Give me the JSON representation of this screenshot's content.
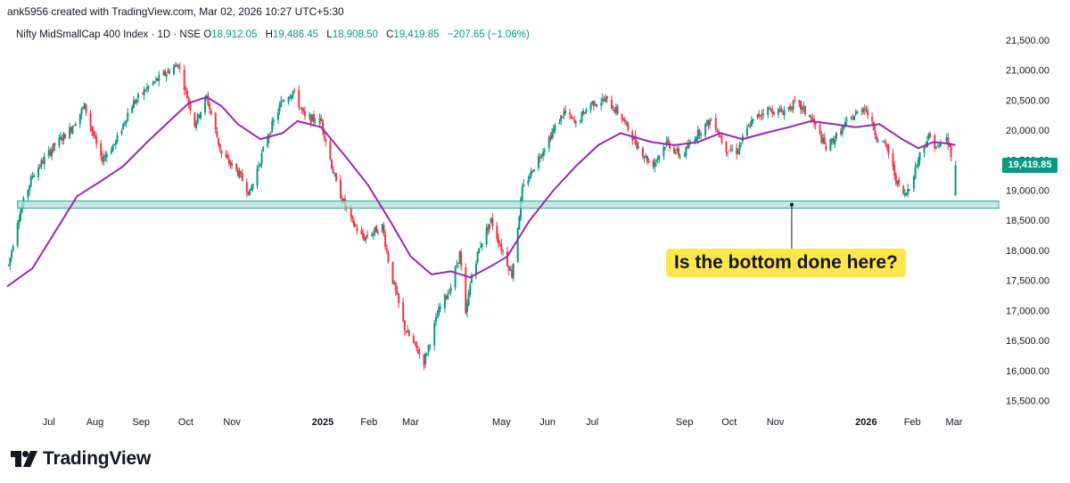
{
  "header": {
    "credit": "ank5956 created with TradingView.com, Mar 02, 2026 10:27 UTC+5:30"
  },
  "legend": {
    "symbol": "Nifty MidSmallCap 400 Index · 1D · NSE",
    "open_label": "O",
    "open": "18,912.05",
    "high_label": "H",
    "high": "19,486.45",
    "low_label": "L",
    "low": "18,908.50",
    "close_label": "C",
    "close": "19,419.85",
    "change": "−207.65 (−1.06%)"
  },
  "price_badge": "19,419.85",
  "annotation": {
    "text": "Is the bottom done here?"
  },
  "branding": {
    "name": "TradingView"
  },
  "colors": {
    "up": "#089981",
    "down": "#f23645",
    "ma": "#9c27b0",
    "zone_fill": "#b2dfdb",
    "zone_border": "#26a69a",
    "callout_bg": "#fde74c"
  },
  "chart_data": {
    "type": "candlestick",
    "ylim": [
      15300,
      21750
    ],
    "y_ticks": [
      "21,500.00",
      "21,000.00",
      "20,500.00",
      "20,000.00",
      "19,500.00",
      "19,000.00",
      "18,500.00",
      "18,000.00",
      "17,500.00",
      "17,000.00",
      "16,500.00",
      "16,000.00",
      "15,500.00"
    ],
    "y_tick_values": [
      21500,
      21000,
      20500,
      20000,
      19500,
      19000,
      18500,
      18000,
      17500,
      17000,
      16500,
      16000,
      15500
    ],
    "x_labels": [
      {
        "label": "Jul",
        "date": "2024-07-01"
      },
      {
        "label": "Aug",
        "date": "2024-08-01"
      },
      {
        "label": "Sep",
        "date": "2024-09-01"
      },
      {
        "label": "Oct",
        "date": "2024-10-01"
      },
      {
        "label": "Nov",
        "date": "2024-11-01"
      },
      {
        "label": "2025",
        "date": "2025-01-01",
        "bold": true
      },
      {
        "label": "Feb",
        "date": "2025-02-01"
      },
      {
        "label": "Mar",
        "date": "2025-03-01"
      },
      {
        "label": "May",
        "date": "2025-05-01"
      },
      {
        "label": "Jun",
        "date": "2025-06-01"
      },
      {
        "label": "Jul",
        "date": "2025-07-01"
      },
      {
        "label": "Sep",
        "date": "2025-09-01"
      },
      {
        "label": "Oct",
        "date": "2025-10-01"
      },
      {
        "label": "Nov",
        "date": "2025-11-01"
      },
      {
        "label": "2026",
        "date": "2026-01-01",
        "bold": true
      },
      {
        "label": "Feb",
        "date": "2026-02-01"
      },
      {
        "label": "Mar",
        "date": "2026-03-01"
      }
    ],
    "x_range": [
      "2024-06-03",
      "2026-03-25"
    ],
    "support_zone": {
      "low": 18700,
      "high": 18820,
      "start": "2024-06-10",
      "end": "2026-03-31"
    },
    "last_close": 19419.85,
    "price_path": [
      [
        "2024-06-04",
        17750
      ],
      [
        "2024-06-10",
        18500
      ],
      [
        "2024-06-20",
        19250
      ],
      [
        "2024-07-05",
        19750
      ],
      [
        "2024-07-15",
        20000
      ],
      [
        "2024-07-25",
        20400
      ],
      [
        "2024-08-05",
        19500
      ],
      [
        "2024-08-15",
        19800
      ],
      [
        "2024-08-25",
        20400
      ],
      [
        "2024-09-05",
        20700
      ],
      [
        "2024-09-15",
        20900
      ],
      [
        "2024-09-26",
        21100
      ],
      [
        "2024-10-07",
        20100
      ],
      [
        "2024-10-15",
        20550
      ],
      [
        "2024-10-25",
        19600
      ],
      [
        "2024-11-05",
        19300
      ],
      [
        "2024-11-13",
        18950
      ],
      [
        "2024-11-25",
        19900
      ],
      [
        "2024-12-05",
        20500
      ],
      [
        "2024-12-12",
        20650
      ],
      [
        "2024-12-20",
        20200
      ],
      [
        "2024-12-31",
        20150
      ],
      [
        "2025-01-10",
        19100
      ],
      [
        "2025-01-20",
        18500
      ],
      [
        "2025-01-28",
        18200
      ],
      [
        "2025-02-10",
        18400
      ],
      [
        "2025-02-15",
        17700
      ],
      [
        "2025-02-25",
        16700
      ],
      [
        "2025-03-04",
        16400
      ],
      [
        "2025-03-10",
        16150
      ],
      [
        "2025-03-20",
        17000
      ],
      [
        "2025-03-28",
        17400
      ],
      [
        "2025-04-03",
        17950
      ],
      [
        "2025-04-07",
        16900
      ],
      [
        "2025-04-11",
        17600
      ],
      [
        "2025-04-17",
        18100
      ],
      [
        "2025-04-24",
        18500
      ],
      [
        "2025-04-30",
        18100
      ],
      [
        "2025-05-08",
        17600
      ],
      [
        "2025-05-15",
        19000
      ],
      [
        "2025-05-25",
        19500
      ],
      [
        "2025-06-05",
        20000
      ],
      [
        "2025-06-12",
        20300
      ],
      [
        "2025-06-20",
        20100
      ],
      [
        "2025-06-30",
        20450
      ],
      [
        "2025-07-10",
        20500
      ],
      [
        "2025-07-20",
        20250
      ],
      [
        "2025-07-30",
        19800
      ],
      [
        "2025-08-10",
        19400
      ],
      [
        "2025-08-20",
        19800
      ],
      [
        "2025-08-30",
        19550
      ],
      [
        "2025-09-08",
        19900
      ],
      [
        "2025-09-20",
        20200
      ],
      [
        "2025-09-28",
        19700
      ],
      [
        "2025-10-06",
        19650
      ],
      [
        "2025-10-15",
        20100
      ],
      [
        "2025-10-25",
        20350
      ],
      [
        "2025-11-05",
        20300
      ],
      [
        "2025-11-15",
        20450
      ],
      [
        "2025-11-25",
        20200
      ],
      [
        "2025-12-05",
        19700
      ],
      [
        "2025-12-12",
        19900
      ],
      [
        "2025-12-20",
        20150
      ],
      [
        "2025-12-31",
        20400
      ],
      [
        "2026-01-08",
        19900
      ],
      [
        "2026-01-15",
        19700
      ],
      [
        "2026-01-22",
        19100
      ],
      [
        "2026-01-27",
        18900
      ],
      [
        "2026-02-01",
        19200
      ],
      [
        "2026-02-06",
        19600
      ],
      [
        "2026-02-12",
        19900
      ],
      [
        "2026-02-18",
        19700
      ],
      [
        "2026-02-24",
        19850
      ],
      [
        "2026-02-27",
        19620
      ],
      [
        "2026-03-02",
        19420
      ]
    ],
    "last_candle": {
      "date": "2026-03-02",
      "open": 18912.05,
      "high": 19486.45,
      "low": 18908.5,
      "close": 19419.85
    },
    "moving_average": [
      [
        "2024-06-03",
        17400
      ],
      [
        "2024-06-20",
        17700
      ],
      [
        "2024-07-05",
        18300
      ],
      [
        "2024-07-20",
        18900
      ],
      [
        "2024-08-05",
        19150
      ],
      [
        "2024-08-20",
        19400
      ],
      [
        "2024-09-05",
        19800
      ],
      [
        "2024-09-20",
        20150
      ],
      [
        "2024-10-03",
        20450
      ],
      [
        "2024-10-15",
        20550
      ],
      [
        "2024-10-25",
        20400
      ],
      [
        "2024-11-05",
        20100
      ],
      [
        "2024-11-20",
        19850
      ],
      [
        "2024-12-05",
        19950
      ],
      [
        "2024-12-15",
        20150
      ],
      [
        "2024-12-31",
        20050
      ],
      [
        "2025-01-15",
        19600
      ],
      [
        "2025-01-31",
        19100
      ],
      [
        "2025-02-15",
        18500
      ],
      [
        "2025-03-01",
        17900
      ],
      [
        "2025-03-15",
        17600
      ],
      [
        "2025-03-28",
        17650
      ],
      [
        "2025-04-10",
        17550
      ],
      [
        "2025-04-25",
        17750
      ],
      [
        "2025-05-05",
        17900
      ],
      [
        "2025-05-20",
        18500
      ],
      [
        "2025-06-05",
        19000
      ],
      [
        "2025-06-20",
        19400
      ],
      [
        "2025-07-05",
        19750
      ],
      [
        "2025-07-20",
        19950
      ],
      [
        "2025-08-10",
        19800
      ],
      [
        "2025-08-25",
        19750
      ],
      [
        "2025-09-10",
        19800
      ],
      [
        "2025-09-25",
        19950
      ],
      [
        "2025-10-10",
        19850
      ],
      [
        "2025-10-25",
        19950
      ],
      [
        "2025-11-10",
        20050
      ],
      [
        "2025-11-25",
        20150
      ],
      [
        "2025-12-10",
        20100
      ],
      [
        "2025-12-25",
        20050
      ],
      [
        "2026-01-10",
        20100
      ],
      [
        "2026-01-25",
        19850
      ],
      [
        "2026-02-05",
        19700
      ],
      [
        "2026-02-15",
        19800
      ],
      [
        "2026-02-25",
        19780
      ],
      [
        "2026-03-02",
        19750
      ]
    ]
  }
}
